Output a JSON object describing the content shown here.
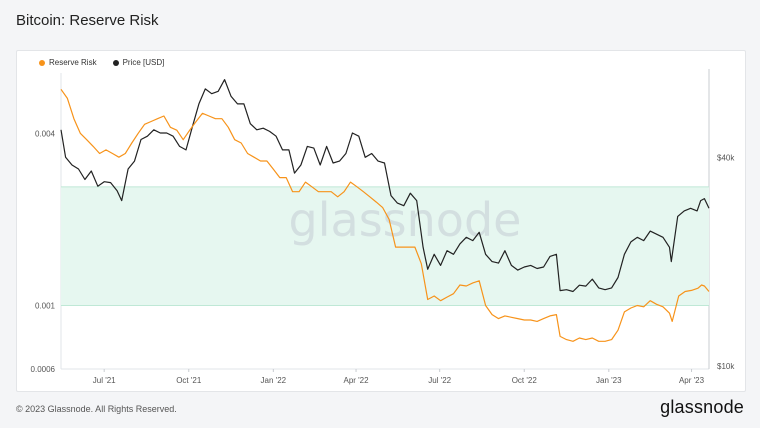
{
  "page": {
    "title": "Bitcoin: Reserve Risk",
    "copyright": "© 2023 Glassnode. All Rights Reserved.",
    "logo": "glassnode",
    "watermark": "glassnode"
  },
  "colors": {
    "reserve_risk": "#f7931a",
    "price": "#222222",
    "band_fill": "#e6f7f0",
    "band_stroke": "#bfe8d6"
  },
  "chart_data": {
    "type": "line",
    "title": "Bitcoin: Reserve Risk",
    "x_ticks": [
      "Jul '21",
      "Oct '21",
      "Jan '22",
      "Apr '22",
      "Jul '22",
      "Oct '22",
      "Jan '23",
      "Apr '23"
    ],
    "x_tick_dates": [
      "2021-07-01",
      "2021-10-01",
      "2022-01-01",
      "2022-04-01",
      "2022-07-01",
      "2022-10-01",
      "2023-01-01",
      "2023-04-01"
    ],
    "x_range": [
      "2021-05-15",
      "2023-04-20"
    ],
    "left_axis": {
      "scale": "log",
      "range": [
        0.0006,
        0.0065
      ],
      "ticks": [
        "0.004",
        "0.001",
        "0.0006"
      ],
      "tick_values": [
        0.004,
        0.001,
        0.0006
      ]
    },
    "right_axis": {
      "scale": "log",
      "range": [
        9800,
        70000
      ],
      "ticks": [
        "$40k",
        "$10k"
      ],
      "tick_values": [
        40000,
        10000
      ]
    },
    "band": {
      "axis": "left",
      "range": [
        0.001,
        0.0026
      ]
    },
    "legend_position": "top-left",
    "series": [
      {
        "name": "Reserve Risk",
        "axis": "left",
        "points": [
          [
            "2021-05-15",
            0.0057
          ],
          [
            "2021-05-22",
            0.0053
          ],
          [
            "2021-05-29",
            0.0045
          ],
          [
            "2021-06-05",
            0.004
          ],
          [
            "2021-06-12",
            0.0038
          ],
          [
            "2021-06-19",
            0.0036
          ],
          [
            "2021-06-26",
            0.0034
          ],
          [
            "2021-07-03",
            0.0035
          ],
          [
            "2021-07-10",
            0.0034
          ],
          [
            "2021-07-17",
            0.0033
          ],
          [
            "2021-07-24",
            0.0034
          ],
          [
            "2021-07-31",
            0.0037
          ],
          [
            "2021-08-07",
            0.004
          ],
          [
            "2021-08-14",
            0.0043
          ],
          [
            "2021-08-21",
            0.0044
          ],
          [
            "2021-08-28",
            0.0045
          ],
          [
            "2021-09-04",
            0.0046
          ],
          [
            "2021-09-11",
            0.0042
          ],
          [
            "2021-09-18",
            0.0041
          ],
          [
            "2021-09-25",
            0.0038
          ],
          [
            "2021-10-02",
            0.0041
          ],
          [
            "2021-10-09",
            0.0044
          ],
          [
            "2021-10-16",
            0.0047
          ],
          [
            "2021-10-23",
            0.0046
          ],
          [
            "2021-10-30",
            0.0045
          ],
          [
            "2021-11-06",
            0.0045
          ],
          [
            "2021-11-13",
            0.0042
          ],
          [
            "2021-11-20",
            0.0038
          ],
          [
            "2021-11-27",
            0.0037
          ],
          [
            "2021-12-04",
            0.0034
          ],
          [
            "2021-12-11",
            0.0033
          ],
          [
            "2021-12-18",
            0.0032
          ],
          [
            "2021-12-25",
            0.0032
          ],
          [
            "2022-01-01",
            0.003
          ],
          [
            "2022-01-08",
            0.0028
          ],
          [
            "2022-01-15",
            0.0028
          ],
          [
            "2022-01-22",
            0.0025
          ],
          [
            "2022-01-29",
            0.0025
          ],
          [
            "2022-02-05",
            0.0027
          ],
          [
            "2022-02-12",
            0.0026
          ],
          [
            "2022-02-19",
            0.0025
          ],
          [
            "2022-02-26",
            0.0025
          ],
          [
            "2022-03-05",
            0.0025
          ],
          [
            "2022-03-12",
            0.0024
          ],
          [
            "2022-03-19",
            0.0025
          ],
          [
            "2022-03-26",
            0.0027
          ],
          [
            "2022-04-02",
            0.0026
          ],
          [
            "2022-04-09",
            0.0025
          ],
          [
            "2022-04-16",
            0.0024
          ],
          [
            "2022-04-23",
            0.0023
          ],
          [
            "2022-04-30",
            0.0022
          ],
          [
            "2022-05-07",
            0.002
          ],
          [
            "2022-05-14",
            0.0016
          ],
          [
            "2022-05-21",
            0.0016
          ],
          [
            "2022-05-28",
            0.0016
          ],
          [
            "2022-06-04",
            0.0016
          ],
          [
            "2022-06-11",
            0.0014
          ],
          [
            "2022-06-18",
            0.00105
          ],
          [
            "2022-06-25",
            0.00108
          ],
          [
            "2022-07-02",
            0.00104
          ],
          [
            "2022-07-09",
            0.00107
          ],
          [
            "2022-07-16",
            0.0011
          ],
          [
            "2022-07-23",
            0.00118
          ],
          [
            "2022-07-30",
            0.00117
          ],
          [
            "2022-08-06",
            0.0012
          ],
          [
            "2022-08-13",
            0.00122
          ],
          [
            "2022-08-20",
            0.001
          ],
          [
            "2022-08-27",
            0.00093
          ],
          [
            "2022-09-03",
            0.0009
          ],
          [
            "2022-09-10",
            0.00092
          ],
          [
            "2022-09-17",
            0.00091
          ],
          [
            "2022-09-24",
            0.0009
          ],
          [
            "2022-10-01",
            0.00089
          ],
          [
            "2022-10-08",
            0.00089
          ],
          [
            "2022-10-15",
            0.00088
          ],
          [
            "2022-10-22",
            0.0009
          ],
          [
            "2022-10-29",
            0.00092
          ],
          [
            "2022-11-05",
            0.00093
          ],
          [
            "2022-11-09",
            0.00078
          ],
          [
            "2022-11-16",
            0.00076
          ],
          [
            "2022-11-23",
            0.00075
          ],
          [
            "2022-11-30",
            0.00077
          ],
          [
            "2022-12-07",
            0.00076
          ],
          [
            "2022-12-14",
            0.00077
          ],
          [
            "2022-12-21",
            0.00075
          ],
          [
            "2022-12-28",
            0.00075
          ],
          [
            "2023-01-04",
            0.00076
          ],
          [
            "2023-01-11",
            0.00082
          ],
          [
            "2023-01-18",
            0.00095
          ],
          [
            "2023-01-25",
            0.00098
          ],
          [
            "2023-02-01",
            0.001
          ],
          [
            "2023-02-08",
            0.00099
          ],
          [
            "2023-02-15",
            0.00104
          ],
          [
            "2023-02-22",
            0.00101
          ],
          [
            "2023-03-01",
            0.00099
          ],
          [
            "2023-03-08",
            0.00094
          ],
          [
            "2023-03-11",
            0.00088
          ],
          [
            "2023-03-18",
            0.00108
          ],
          [
            "2023-03-25",
            0.00112
          ],
          [
            "2023-04-01",
            0.00113
          ],
          [
            "2023-04-08",
            0.00115
          ],
          [
            "2023-04-12",
            0.00118
          ],
          [
            "2023-04-15",
            0.00117
          ],
          [
            "2023-04-20",
            0.00112
          ]
        ]
      },
      {
        "name": "Price [USD]",
        "axis": "right",
        "points": [
          [
            "2021-05-15",
            48000
          ],
          [
            "2021-05-20",
            40000
          ],
          [
            "2021-05-27",
            38000
          ],
          [
            "2021-06-03",
            37000
          ],
          [
            "2021-06-10",
            34500
          ],
          [
            "2021-06-17",
            36500
          ],
          [
            "2021-06-24",
            33000
          ],
          [
            "2021-07-01",
            34000
          ],
          [
            "2021-07-08",
            33800
          ],
          [
            "2021-07-15",
            32000
          ],
          [
            "2021-07-20",
            30000
          ],
          [
            "2021-07-27",
            37000
          ],
          [
            "2021-08-03",
            39000
          ],
          [
            "2021-08-10",
            45000
          ],
          [
            "2021-08-17",
            46000
          ],
          [
            "2021-08-24",
            48000
          ],
          [
            "2021-08-31",
            47000
          ],
          [
            "2021-09-07",
            47000
          ],
          [
            "2021-09-14",
            46000
          ],
          [
            "2021-09-21",
            43000
          ],
          [
            "2021-09-28",
            42000
          ],
          [
            "2021-10-05",
            49000
          ],
          [
            "2021-10-12",
            57000
          ],
          [
            "2021-10-19",
            63000
          ],
          [
            "2021-10-26",
            61000
          ],
          [
            "2021-11-02",
            62000
          ],
          [
            "2021-11-09",
            67000
          ],
          [
            "2021-11-16",
            60000
          ],
          [
            "2021-11-23",
            57000
          ],
          [
            "2021-11-30",
            57000
          ],
          [
            "2021-12-07",
            50000
          ],
          [
            "2021-12-14",
            48000
          ],
          [
            "2021-12-21",
            48500
          ],
          [
            "2021-12-28",
            47500
          ],
          [
            "2022-01-04",
            46000
          ],
          [
            "2022-01-11",
            42000
          ],
          [
            "2022-01-18",
            42000
          ],
          [
            "2022-01-24",
            36000
          ],
          [
            "2022-01-31",
            38000
          ],
          [
            "2022-02-07",
            43000
          ],
          [
            "2022-02-14",
            42500
          ],
          [
            "2022-02-21",
            38000
          ],
          [
            "2022-02-28",
            43000
          ],
          [
            "2022-03-07",
            38500
          ],
          [
            "2022-03-14",
            39000
          ],
          [
            "2022-03-21",
            41000
          ],
          [
            "2022-03-28",
            47000
          ],
          [
            "2022-04-04",
            46000
          ],
          [
            "2022-04-11",
            40000
          ],
          [
            "2022-04-18",
            41000
          ],
          [
            "2022-04-25",
            39000
          ],
          [
            "2022-05-02",
            38500
          ],
          [
            "2022-05-09",
            31000
          ],
          [
            "2022-05-16",
            29500
          ],
          [
            "2022-05-23",
            29000
          ],
          [
            "2022-05-30",
            31500
          ],
          [
            "2022-06-06",
            30000
          ],
          [
            "2022-06-13",
            22000
          ],
          [
            "2022-06-18",
            19000
          ],
          [
            "2022-06-25",
            21000
          ],
          [
            "2022-07-02",
            19500
          ],
          [
            "2022-07-09",
            21500
          ],
          [
            "2022-07-16",
            21000
          ],
          [
            "2022-07-23",
            22500
          ],
          [
            "2022-07-30",
            23500
          ],
          [
            "2022-08-06",
            23000
          ],
          [
            "2022-08-13",
            24300
          ],
          [
            "2022-08-20",
            21000
          ],
          [
            "2022-08-27",
            20000
          ],
          [
            "2022-09-03",
            19800
          ],
          [
            "2022-09-10",
            21500
          ],
          [
            "2022-09-17",
            19500
          ],
          [
            "2022-09-24",
            18900
          ],
          [
            "2022-10-01",
            19300
          ],
          [
            "2022-10-08",
            19500
          ],
          [
            "2022-10-15",
            19100
          ],
          [
            "2022-10-22",
            19300
          ],
          [
            "2022-10-29",
            20700
          ],
          [
            "2022-11-05",
            21000
          ],
          [
            "2022-11-09",
            16500
          ],
          [
            "2022-11-16",
            16600
          ],
          [
            "2022-11-23",
            16400
          ],
          [
            "2022-11-30",
            17100
          ],
          [
            "2022-12-07",
            17000
          ],
          [
            "2022-12-14",
            17800
          ],
          [
            "2022-12-21",
            16800
          ],
          [
            "2022-12-28",
            16600
          ],
          [
            "2023-01-04",
            16800
          ],
          [
            "2023-01-11",
            18000
          ],
          [
            "2023-01-18",
            21000
          ],
          [
            "2023-01-25",
            22800
          ],
          [
            "2023-02-01",
            23500
          ],
          [
            "2023-02-08",
            23000
          ],
          [
            "2023-02-15",
            24500
          ],
          [
            "2023-02-22",
            24000
          ],
          [
            "2023-03-01",
            23500
          ],
          [
            "2023-03-08",
            22000
          ],
          [
            "2023-03-10",
            20000
          ],
          [
            "2023-03-17",
            27000
          ],
          [
            "2023-03-24",
            28000
          ],
          [
            "2023-03-31",
            28500
          ],
          [
            "2023-04-07",
            28000
          ],
          [
            "2023-04-11",
            30000
          ],
          [
            "2023-04-15",
            30400
          ],
          [
            "2023-04-20",
            28500
          ]
        ]
      }
    ]
  }
}
